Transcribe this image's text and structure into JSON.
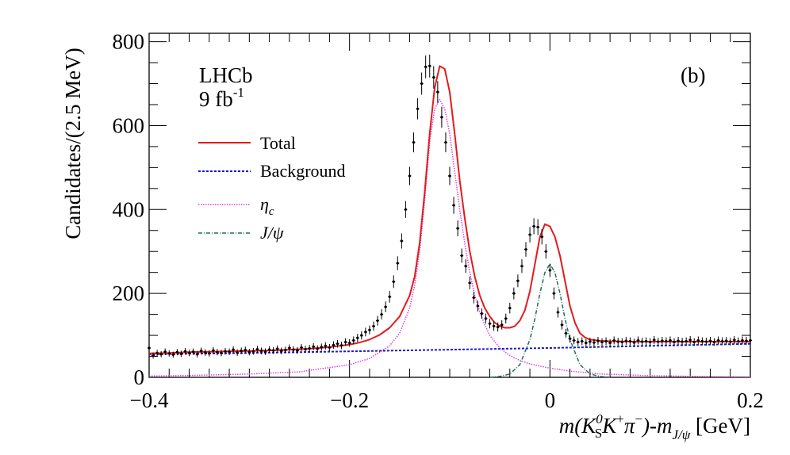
{
  "chart_data": {
    "type": "line",
    "panel_label": "(b)",
    "experiment": "LHCb",
    "luminosity": {
      "base": "9 fb",
      "exponent": "-1"
    },
    "ylabel": "Candidates/(2.5 MeV)",
    "xlabel": {
      "prefix": "m(K",
      "k_super": "0",
      "k_sub": "S",
      "middle": "K",
      "plus": "+",
      "pi": "π",
      "minus": "−",
      "close": ")-m",
      "jpsi_sub": "J/ψ",
      "unit": " [GeV]"
    },
    "xlim": [
      -0.4,
      0.2
    ],
    "ylim": [
      0,
      820
    ],
    "x_ticks": [
      {
        "value": -0.4,
        "label": "−0.4"
      },
      {
        "value": -0.2,
        "label": "−0.2"
      },
      {
        "value": 0.0,
        "label": "0"
      },
      {
        "value": 0.2,
        "label": "0.2"
      }
    ],
    "y_ticks": [
      {
        "value": 0,
        "label": "0"
      },
      {
        "value": 200,
        "label": "200"
      },
      {
        "value": 400,
        "label": "400"
      },
      {
        "value": 600,
        "label": "600"
      },
      {
        "value": 800,
        "label": "800"
      }
    ],
    "legend": [
      {
        "name": "Total",
        "color": "#e41a1c",
        "style": "solid"
      },
      {
        "name": "Background",
        "color": "#1a1acc",
        "style": "dashed"
      },
      {
        "name": "η",
        "sub": "c",
        "color": "#e040e0",
        "style": "dotted"
      },
      {
        "name": "J/ψ",
        "color": "#1f6f5f",
        "style": "dashdot"
      }
    ],
    "series": [
      {
        "name": "Data",
        "type": "points",
        "x": [
          -0.4,
          -0.396,
          -0.392,
          -0.388,
          -0.384,
          -0.38,
          -0.376,
          -0.372,
          -0.368,
          -0.364,
          -0.36,
          -0.356,
          -0.352,
          -0.348,
          -0.344,
          -0.34,
          -0.336,
          -0.332,
          -0.328,
          -0.324,
          -0.32,
          -0.316,
          -0.312,
          -0.308,
          -0.304,
          -0.3,
          -0.296,
          -0.292,
          -0.288,
          -0.284,
          -0.28,
          -0.276,
          -0.272,
          -0.268,
          -0.264,
          -0.26,
          -0.256,
          -0.252,
          -0.248,
          -0.244,
          -0.24,
          -0.236,
          -0.232,
          -0.228,
          -0.224,
          -0.22,
          -0.216,
          -0.212,
          -0.208,
          -0.204,
          -0.2,
          -0.196,
          -0.192,
          -0.188,
          -0.184,
          -0.18,
          -0.176,
          -0.172,
          -0.168,
          -0.164,
          -0.16,
          -0.156,
          -0.152,
          -0.148,
          -0.144,
          -0.14,
          -0.136,
          -0.132,
          -0.128,
          -0.124,
          -0.12,
          -0.116,
          -0.112,
          -0.108,
          -0.104,
          -0.1,
          -0.096,
          -0.092,
          -0.088,
          -0.084,
          -0.08,
          -0.076,
          -0.072,
          -0.068,
          -0.064,
          -0.06,
          -0.056,
          -0.052,
          -0.048,
          -0.044,
          -0.04,
          -0.036,
          -0.032,
          -0.028,
          -0.024,
          -0.02,
          -0.016,
          -0.012,
          -0.008,
          -0.004,
          0.0,
          0.004,
          0.008,
          0.012,
          0.016,
          0.02,
          0.024,
          0.028,
          0.032,
          0.036,
          0.04,
          0.044,
          0.048,
          0.052,
          0.056,
          0.06,
          0.064,
          0.068,
          0.072,
          0.076,
          0.08,
          0.084,
          0.088,
          0.092,
          0.096,
          0.1,
          0.104,
          0.108,
          0.112,
          0.116,
          0.12,
          0.124,
          0.128,
          0.132,
          0.136,
          0.14,
          0.144,
          0.148,
          0.152,
          0.156,
          0.16,
          0.164,
          0.168,
          0.172,
          0.176,
          0.18,
          0.184,
          0.188,
          0.192,
          0.196,
          0.2
        ],
        "y": [
          70,
          52,
          58,
          55,
          61,
          57,
          54,
          60,
          56,
          62,
          58,
          61,
          55,
          63,
          59,
          57,
          64,
          60,
          58,
          62,
          61,
          66,
          59,
          63,
          65,
          60,
          62,
          67,
          63,
          61,
          66,
          64,
          68,
          63,
          65,
          70,
          66,
          64,
          71,
          67,
          69,
          73,
          68,
          72,
          75,
          71,
          77,
          80,
          76,
          84,
          82,
          88,
          94,
          100,
          108,
          113,
          122,
          135,
          150,
          168,
          192,
          228,
          272,
          325,
          400,
          480,
          560,
          640,
          700,
          740,
          742,
          715,
          680,
          620,
          560,
          480,
          410,
          355,
          290,
          265,
          225,
          190,
          170,
          152,
          140,
          128,
          122,
          120,
          125,
          140,
          165,
          200,
          230,
          265,
          305,
          340,
          360,
          358,
          335,
          300,
          255,
          200,
          155,
          125,
          105,
          92,
          88,
          84,
          86,
          82,
          85,
          83,
          87,
          84,
          86,
          82,
          88,
          85,
          84,
          87,
          86,
          83,
          88,
          85,
          86,
          84,
          89,
          85,
          87,
          86,
          88,
          84,
          87,
          85,
          86,
          89,
          84,
          88,
          86,
          85,
          87,
          84,
          88,
          86,
          87,
          85,
          89,
          86,
          88,
          87,
          88
        ]
      },
      {
        "name": "Total",
        "x": [
          -0.4,
          -0.38,
          -0.36,
          -0.34,
          -0.32,
          -0.3,
          -0.28,
          -0.26,
          -0.24,
          -0.22,
          -0.2,
          -0.19,
          -0.18,
          -0.17,
          -0.16,
          -0.15,
          -0.14,
          -0.135,
          -0.13,
          -0.125,
          -0.12,
          -0.115,
          -0.11,
          -0.105,
          -0.1,
          -0.095,
          -0.09,
          -0.085,
          -0.08,
          -0.075,
          -0.07,
          -0.065,
          -0.06,
          -0.055,
          -0.05,
          -0.045,
          -0.04,
          -0.035,
          -0.03,
          -0.025,
          -0.02,
          -0.015,
          -0.01,
          -0.005,
          0.0,
          0.005,
          0.01,
          0.015,
          0.02,
          0.025,
          0.03,
          0.035,
          0.04,
          0.05,
          0.06,
          0.08,
          0.1,
          0.12,
          0.14,
          0.16,
          0.18,
          0.2
        ],
        "y": [
          57,
          58,
          60,
          61,
          62,
          63,
          64,
          66,
          68,
          72,
          78,
          83,
          90,
          101,
          118,
          145,
          195,
          240,
          320,
          440,
          580,
          690,
          742,
          735,
          680,
          580,
          470,
          380,
          300,
          240,
          195,
          165,
          145,
          130,
          122,
          118,
          118,
          122,
          135,
          160,
          205,
          270,
          335,
          365,
          360,
          335,
          290,
          230,
          170,
          130,
          105,
          95,
          90,
          87,
          86,
          85,
          85,
          85,
          85,
          85,
          85,
          85
        ]
      },
      {
        "name": "Background",
        "x": [
          -0.4,
          -0.3,
          -0.2,
          -0.1,
          0.0,
          0.1,
          0.2
        ],
        "y": [
          55,
          58,
          62,
          66,
          70,
          75,
          80
        ]
      },
      {
        "name": "η",
        "x": [
          -0.4,
          -0.35,
          -0.3,
          -0.25,
          -0.2,
          -0.18,
          -0.16,
          -0.15,
          -0.14,
          -0.135,
          -0.13,
          -0.125,
          -0.12,
          -0.115,
          -0.11,
          -0.105,
          -0.1,
          -0.095,
          -0.09,
          -0.085,
          -0.08,
          -0.075,
          -0.07,
          -0.065,
          -0.06,
          -0.05,
          -0.04,
          -0.03,
          -0.02,
          0.0,
          0.02,
          0.05,
          0.1,
          0.15,
          0.2
        ],
        "y": [
          3,
          5,
          8,
          13,
          30,
          45,
          75,
          105,
          165,
          220,
          300,
          420,
          560,
          640,
          662,
          640,
          580,
          490,
          400,
          320,
          250,
          195,
          155,
          125,
          100,
          70,
          52,
          40,
          32,
          22,
          15,
          8,
          4,
          2,
          1
        ]
      },
      {
        "name": "J/ψ",
        "x": [
          -0.06,
          -0.05,
          -0.04,
          -0.03,
          -0.02,
          -0.015,
          -0.01,
          -0.005,
          0.0,
          0.005,
          0.01,
          0.015,
          0.02,
          0.03,
          0.04,
          0.05,
          0.06
        ],
        "y": [
          0,
          2,
          8,
          30,
          90,
          140,
          200,
          250,
          270,
          250,
          200,
          140,
          90,
          30,
          8,
          2,
          0
        ]
      }
    ]
  }
}
